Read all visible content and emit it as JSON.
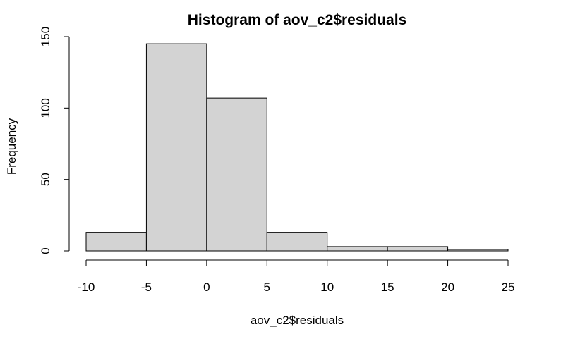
{
  "chart_data": {
    "type": "bar",
    "title": "Histogram of aov_c2$residuals",
    "xlabel": "aov_c2$residuals",
    "ylabel": "Frequency",
    "bins": [
      {
        "from": -10,
        "to": -5,
        "count": 13
      },
      {
        "from": -5,
        "to": 0,
        "count": 145
      },
      {
        "from": 0,
        "to": 5,
        "count": 107
      },
      {
        "from": 5,
        "to": 10,
        "count": 13
      },
      {
        "from": 10,
        "to": 15,
        "count": 3
      },
      {
        "from": 15,
        "to": 20,
        "count": 3
      },
      {
        "from": 20,
        "to": 25,
        "count": 1
      }
    ],
    "xlim": [
      -10,
      25
    ],
    "ylim": [
      0,
      150
    ],
    "x_ticks": [
      "-10",
      "-5",
      "0",
      "5",
      "10",
      "15",
      "20",
      "25"
    ],
    "y_ticks": [
      "0",
      "50",
      "100",
      "150"
    ],
    "bar_color": "#d3d3d3",
    "border_color": "#000000",
    "grid": false,
    "legend": "none"
  }
}
